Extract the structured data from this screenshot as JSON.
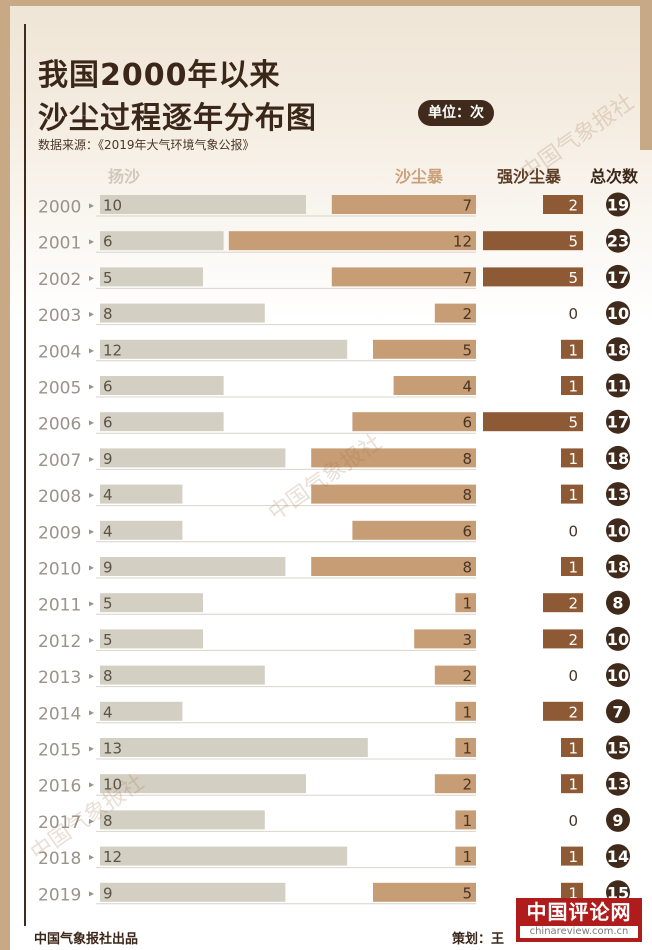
{
  "title_line1": "我国2000年以来",
  "title_line2": "沙尘过程逐年分布图",
  "unit_label": "单位：次",
  "source_note": "数据来源：《2019年大气环境气象公报》",
  "watermark_text": "中国气象报社",
  "footer_left": "中国气象报社出品",
  "footer_right": "策划：王",
  "logo_text": "中国评论网",
  "logo_url": "chinareview.com.cn",
  "colors": {
    "yangsha": "#d4cfc3",
    "shachenbao": "#c79d75",
    "qiangsha": "#8e5a36",
    "total_circle": "#3f2a1b",
    "border": "#c8a985"
  },
  "chart_data": {
    "type": "bar",
    "categories": [
      "2000",
      "2001",
      "2002",
      "2003",
      "2004",
      "2005",
      "2006",
      "2007",
      "2008",
      "2009",
      "2010",
      "2011",
      "2012",
      "2013",
      "2014",
      "2015",
      "2016",
      "2017",
      "2018",
      "2019"
    ],
    "series": [
      {
        "name": "扬沙",
        "values": [
          10,
          6,
          5,
          8,
          12,
          6,
          6,
          9,
          4,
          4,
          9,
          5,
          5,
          8,
          4,
          13,
          10,
          8,
          12,
          9
        ]
      },
      {
        "name": "沙尘暴",
        "values": [
          7,
          12,
          7,
          2,
          5,
          4,
          6,
          8,
          8,
          6,
          8,
          1,
          3,
          2,
          1,
          1,
          2,
          1,
          1,
          5
        ]
      },
      {
        "name": "强沙尘暴",
        "values": [
          2,
          5,
          5,
          0,
          1,
          1,
          5,
          1,
          1,
          0,
          1,
          2,
          2,
          0,
          2,
          1,
          1,
          0,
          1,
          1
        ]
      },
      {
        "name": "总次数",
        "values": [
          19,
          23,
          17,
          10,
          18,
          11,
          17,
          18,
          13,
          10,
          18,
          8,
          10,
          10,
          7,
          15,
          13,
          9,
          14,
          15
        ]
      }
    ]
  }
}
